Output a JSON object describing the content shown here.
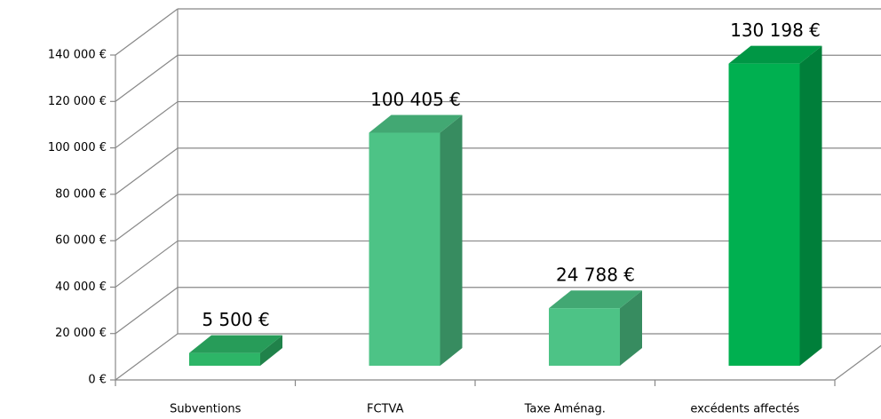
{
  "chart_data": {
    "type": "bar3d",
    "categories": [
      "Subventions",
      "FCTVA",
      "Taxe Aménag.",
      "excédents affectés"
    ],
    "values": [
      5500,
      100405,
      24788,
      130198
    ],
    "value_labels": [
      "5 500 €",
      "100 405 €",
      "24 788 €",
      "130 198 €"
    ],
    "colors": [
      "#2db567",
      "#4dc386",
      "#4dc386",
      "#00b050"
    ],
    "ylim": [
      0,
      140000
    ],
    "yticks": [
      {
        "value": 0,
        "label": "0 €"
      },
      {
        "value": 20000,
        "label": "20 000 €"
      },
      {
        "value": 40000,
        "label": "40 000 €"
      },
      {
        "value": 60000,
        "label": "60 000 €"
      },
      {
        "value": 80000,
        "label": "80 000 €"
      },
      {
        "value": 100000,
        "label": "100 000 €"
      },
      {
        "value": 120000,
        "label": "120 000 €"
      },
      {
        "value": 140000,
        "label": "140 000 €"
      }
    ],
    "grid": true
  }
}
